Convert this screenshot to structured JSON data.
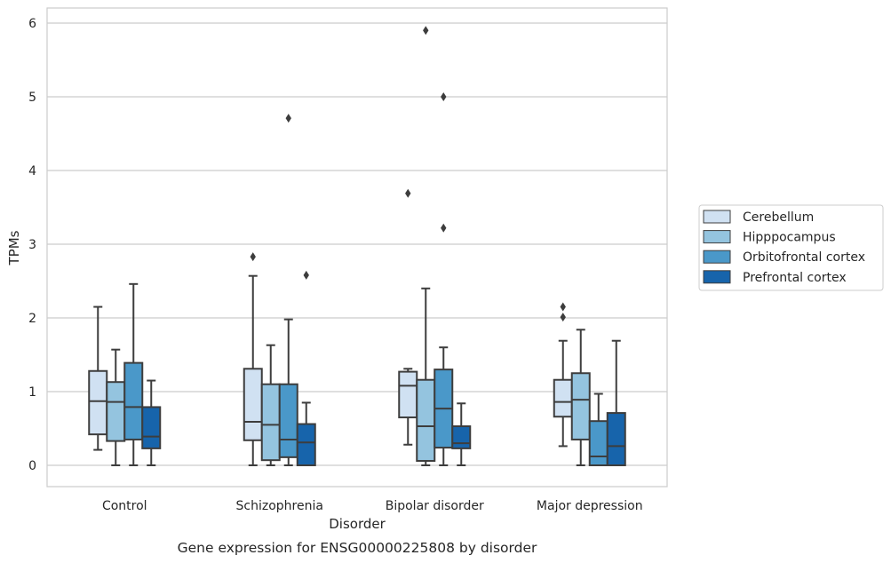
{
  "chart_data": {
    "type": "box",
    "caption": "Gene expression for ENSG00000225808 by disorder",
    "xlabel": "Disorder",
    "ylabel": "TPMs",
    "ylim": [
      -0.28,
      6.2
    ],
    "yticks": [
      0,
      1,
      2,
      3,
      4,
      5,
      6
    ],
    "grid": true,
    "legend_position": "right",
    "categories": [
      "Control",
      "Schizophrenia",
      "Bipolar disorder",
      "Major depression"
    ],
    "series": [
      {
        "name": "Cerebellum",
        "color": "#d0e1f2",
        "boxes": [
          {
            "whislo": 0.21,
            "q1": 0.42,
            "med": 0.87,
            "q3": 1.28,
            "whishi": 2.15,
            "fliers": []
          },
          {
            "whislo": 0.0,
            "q1": 0.34,
            "med": 0.59,
            "q3": 1.31,
            "whishi": 2.57,
            "fliers": [
              2.83
            ]
          },
          {
            "whislo": 0.28,
            "q1": 0.65,
            "med": 1.08,
            "q3": 1.27,
            "whishi": 1.31,
            "fliers": [
              3.69
            ]
          },
          {
            "whislo": 0.26,
            "q1": 0.66,
            "med": 0.86,
            "q3": 1.16,
            "whishi": 1.69,
            "fliers": [
              2.01,
              2.15
            ]
          }
        ]
      },
      {
        "name": "Hipppocampus",
        "color": "#94c4df",
        "boxes": [
          {
            "whislo": 0.0,
            "q1": 0.33,
            "med": 0.86,
            "q3": 1.13,
            "whishi": 1.57,
            "fliers": []
          },
          {
            "whislo": 0.0,
            "q1": 0.07,
            "med": 0.55,
            "q3": 1.1,
            "whishi": 1.63,
            "fliers": []
          },
          {
            "whislo": 0.0,
            "q1": 0.06,
            "med": 0.53,
            "q3": 1.16,
            "whishi": 2.4,
            "fliers": [
              5.9
            ]
          },
          {
            "whislo": 0.0,
            "q1": 0.35,
            "med": 0.89,
            "q3": 1.25,
            "whishi": 1.84,
            "fliers": []
          }
        ]
      },
      {
        "name": "Orbitofrontal cortex",
        "color": "#4a98c9",
        "boxes": [
          {
            "whislo": 0.0,
            "q1": 0.35,
            "med": 0.79,
            "q3": 1.39,
            "whishi": 2.46,
            "fliers": []
          },
          {
            "whislo": 0.0,
            "q1": 0.11,
            "med": 0.35,
            "q3": 1.1,
            "whishi": 1.98,
            "fliers": [
              4.71
            ]
          },
          {
            "whislo": 0.0,
            "q1": 0.24,
            "med": 0.77,
            "q3": 1.3,
            "whishi": 1.6,
            "fliers": [
              3.22,
              5.0
            ]
          },
          {
            "whislo": 0.0,
            "q1": 0.0,
            "med": 0.12,
            "q3": 0.6,
            "whishi": 0.97,
            "fliers": []
          }
        ]
      },
      {
        "name": "Prefrontal cortex",
        "color": "#1764ab",
        "boxes": [
          {
            "whislo": 0.0,
            "q1": 0.23,
            "med": 0.39,
            "q3": 0.79,
            "whishi": 1.15,
            "fliers": []
          },
          {
            "whislo": 0.0,
            "q1": 0.0,
            "med": 0.31,
            "q3": 0.56,
            "whishi": 0.85,
            "fliers": [
              2.58
            ]
          },
          {
            "whislo": 0.0,
            "q1": 0.23,
            "med": 0.3,
            "q3": 0.53,
            "whishi": 0.84,
            "fliers": []
          },
          {
            "whislo": 0.0,
            "q1": 0.0,
            "med": 0.26,
            "q3": 0.71,
            "whishi": 1.69,
            "fliers": []
          }
        ]
      }
    ]
  }
}
